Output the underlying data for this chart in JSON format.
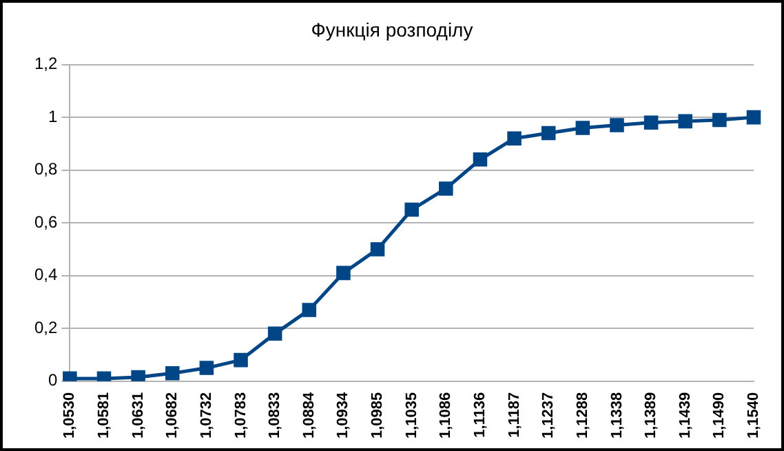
{
  "chart_data": {
    "type": "line",
    "title": "Функція розподілу",
    "categories": [
      "1,0530",
      "1,0581",
      "1,0631",
      "1,0682",
      "1,0732",
      "1,0783",
      "1,0833",
      "1,0884",
      "1,0934",
      "1,0985",
      "1,1035",
      "1,1086",
      "1,1136",
      "1,1187",
      "1,1237",
      "1,1288",
      "1,1338",
      "1,1389",
      "1,1439",
      "1,1490",
      "1,1540"
    ],
    "series": [
      {
        "color": "#004586",
        "values": [
          0.01,
          0.01,
          0.015,
          0.03,
          0.05,
          0.08,
          0.18,
          0.27,
          0.41,
          0.5,
          0.65,
          0.73,
          0.84,
          0.92,
          0.94,
          0.96,
          0.97,
          0.98,
          0.985,
          0.99,
          1.0
        ]
      }
    ],
    "ylim": [
      0,
      1.2
    ],
    "yticks": [
      {
        "value": 0,
        "label": "0"
      },
      {
        "value": 0.2,
        "label": "0,2"
      },
      {
        "value": 0.4,
        "label": "0,4"
      },
      {
        "value": 0.6,
        "label": "0,6"
      },
      {
        "value": 0.8,
        "label": "0,8"
      },
      {
        "value": 1,
        "label": "1"
      },
      {
        "value": 1.2,
        "label": "1,2"
      }
    ],
    "grid": "y",
    "legend": false,
    "marker": "square",
    "line_style": "solid"
  }
}
